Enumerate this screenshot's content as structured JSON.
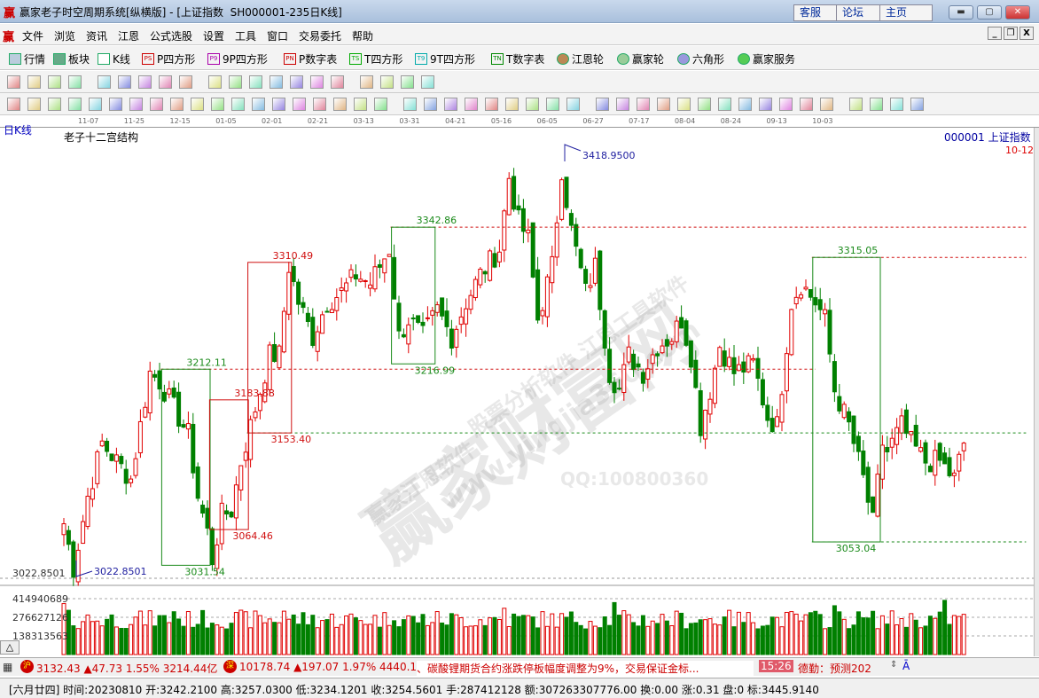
{
  "window": {
    "title": "赢家老子时空周期系统[纵横版] - [上证指数  SH000001-235日K线]",
    "logo": "赢",
    "web_buttons": [
      "客服",
      "论坛",
      "主页"
    ],
    "controls": [
      "minimize",
      "restore",
      "close"
    ]
  },
  "menu": {
    "items": [
      "文件",
      "浏览",
      "资讯",
      "江恩",
      "公式选股",
      "设置",
      "工具",
      "窗口",
      "交易委托",
      "帮助"
    ],
    "mdi_controls": [
      "_",
      "restore",
      "X"
    ]
  },
  "toolbar1": [
    {
      "icon": "grid-icon",
      "label": "行情"
    },
    {
      "icon": "blocks-icon",
      "label": "板块"
    },
    {
      "icon": "candles-icon",
      "label": "K线"
    },
    {
      "icon": "PS",
      "label": "P四方形"
    },
    {
      "icon": "P9",
      "label": "9P四方形"
    },
    {
      "icon": "PN",
      "label": "P数字表"
    },
    {
      "icon": "TS",
      "label": "T四方形"
    },
    {
      "icon": "T9",
      "label": "9T四方形"
    },
    {
      "icon": "TN",
      "label": "T数字表"
    },
    {
      "icon": "gann-wheel-icon",
      "label": "江恩轮"
    },
    {
      "icon": "big-wheel-icon",
      "label": "赢家轮"
    },
    {
      "icon": "hexagon-icon",
      "label": "六角形"
    },
    {
      "icon": "dollar-icon",
      "label": "赢家服务"
    }
  ],
  "date_axis": [
    "11-07",
    "11-25",
    "12-15",
    "01-05",
    "02-01",
    "02-21",
    "03-13",
    "03-31",
    "04-21",
    "05-16",
    "06-05",
    "06-27",
    "07-17",
    "08-04",
    "08-24",
    "09-13",
    "10-03"
  ],
  "chart": {
    "period_label": "日K线",
    "indicator_title": "老子十二宫结构",
    "symbol_label": "000001 上证指数",
    "date_label": "10-12",
    "y_axis_label": "3022.8501",
    "high_label": "3418.9500",
    "low_label": "3022.8501",
    "price_path": [
      [
        0,
        3070
      ],
      [
        2,
        3029
      ],
      [
        5,
        3095
      ],
      [
        8,
        3144
      ],
      [
        11,
        3127
      ],
      [
        14,
        3111
      ],
      [
        16,
        3160
      ],
      [
        18,
        3209
      ],
      [
        20,
        3201
      ],
      [
        23,
        3176
      ],
      [
        26,
        3152
      ],
      [
        28,
        3095
      ],
      [
        30,
        3062
      ],
      [
        31,
        3037
      ],
      [
        33,
        3078
      ],
      [
        35,
        3082
      ],
      [
        37,
        3127
      ],
      [
        40,
        3176
      ],
      [
        43,
        3225
      ],
      [
        45,
        3225
      ],
      [
        47,
        3307
      ],
      [
        49,
        3274
      ],
      [
        52,
        3242
      ],
      [
        55,
        3274
      ],
      [
        58,
        3283
      ],
      [
        61,
        3299
      ],
      [
        64,
        3291
      ],
      [
        68,
        3323
      ],
      [
        70,
        3242
      ],
      [
        72,
        3258
      ],
      [
        75,
        3242
      ],
      [
        78,
        3266
      ],
      [
        81,
        3242
      ],
      [
        84,
        3274
      ],
      [
        87,
        3299
      ],
      [
        91,
        3323
      ],
      [
        93,
        3389
      ],
      [
        95,
        3348
      ],
      [
        97,
        3332
      ],
      [
        99,
        3258
      ],
      [
        102,
        3307
      ],
      [
        104,
        3397
      ],
      [
        106,
        3340
      ],
      [
        109,
        3283
      ],
      [
        111,
        3307
      ],
      [
        114,
        3209
      ],
      [
        116,
        3193
      ],
      [
        118,
        3225
      ],
      [
        121,
        3209
      ],
      [
        124,
        3234
      ],
      [
        127,
        3242
      ],
      [
        129,
        3258
      ],
      [
        131,
        3225
      ],
      [
        133,
        3160
      ],
      [
        135,
        3193
      ],
      [
        137,
        3234
      ],
      [
        140,
        3209
      ],
      [
        144,
        3217
      ],
      [
        147,
        3168
      ],
      [
        149,
        3160
      ],
      [
        152,
        3274
      ],
      [
        154,
        3291
      ],
      [
        157,
        3274
      ],
      [
        159,
        3258
      ],
      [
        161,
        3193
      ],
      [
        164,
        3160
      ],
      [
        167,
        3111
      ],
      [
        169,
        3070
      ],
      [
        171,
        3144
      ],
      [
        172,
        3136
      ],
      [
        175,
        3160
      ],
      [
        177,
        3144
      ],
      [
        180,
        3127
      ],
      [
        183,
        3127
      ],
      [
        186,
        3111
      ],
      [
        188,
        3144
      ]
    ],
    "boxes": [
      {
        "from": 21,
        "to": 30,
        "top": 3212.11,
        "bottom": 3031.54,
        "color": "#1a8a1a",
        "top_label": "3212.11",
        "bottom_label": "3031.54"
      },
      {
        "from": 31,
        "to": 38,
        "top": 3183.88,
        "bottom": 3064.46,
        "color": "#d01010",
        "top_label": "3183.88",
        "bottom_label": "3064.46"
      },
      {
        "from": 39,
        "to": 47,
        "top": 3310.49,
        "bottom": 3153.4,
        "color": "#d01010",
        "top_label": "3310.49",
        "bottom_label": "3153.40"
      },
      {
        "from": 69,
        "to": 77,
        "top": 3342.86,
        "bottom": 3216.99,
        "color": "#1a8a1a",
        "top_label": "3342.86",
        "bottom_label": "3216.99"
      },
      {
        "from": 157,
        "to": 170,
        "top": 3315.05,
        "bottom": 3053.04,
        "color": "#1a8a1a",
        "top_label": "3315.05",
        "bottom_label": "3053.04"
      }
    ],
    "levels": [
      {
        "price": 3212.11,
        "from": 21,
        "to": 157,
        "color": "#d01010"
      },
      {
        "price": 3342.86,
        "from": 69,
        "to": 201,
        "color": "#d01010"
      },
      {
        "price": 3315.05,
        "from": 157,
        "to": 201,
        "color": "#d01010"
      },
      {
        "price": 3153.4,
        "from": 39,
        "to": 201,
        "color": "#1a8a1a"
      },
      {
        "price": 3053.04,
        "from": 157,
        "to": 201,
        "color": "#1a8a1a"
      }
    ],
    "colors": {
      "up": "#e00000",
      "down": "#008000",
      "label_blue": "#2020a0"
    }
  },
  "volume": {
    "axis_labels": [
      "414940689",
      "276627126",
      "138313563"
    ]
  },
  "watermark": {
    "main": "赢家财富网",
    "sub": "股票分析软件 江恩工具软件",
    "url": "www.yingjia360.com",
    "brand": "赢家江恩软件",
    "qq": "QQ:100800360"
  },
  "status1": {
    "sh_badge": "沪",
    "sh": "3132.43 ▲47.73 1.55% 3214.44亿",
    "sz_badge": "深",
    "sz": "10178.74 ▲197.07 1.97% 4440.1",
    "news": "、碳酸锂期货合约涨跌停板幅度调整为9%，交易保证金标...",
    "time": "15:26",
    "news2": "德勤：预测202"
  },
  "status2": {
    "text": "[六月廿四] 时间:20230810 开:3242.2100 高:3257.0300 低:3234.1201 收:3254.5601 手:287412128 额:307263307776.00 换:0.00 涨:0.31 盘:0 标:3445.9140"
  }
}
